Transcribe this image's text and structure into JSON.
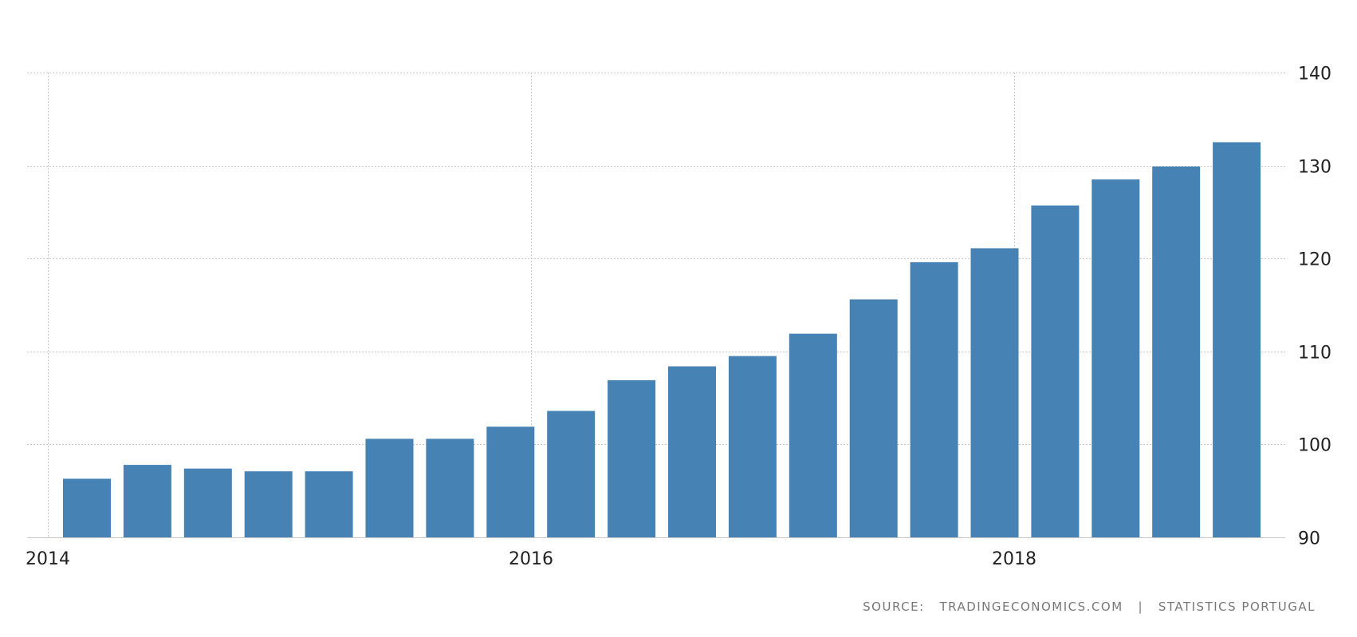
{
  "chart_data": {
    "type": "bar",
    "title": "",
    "xlabel": "",
    "ylabel": "",
    "x_tick_labels": [
      "2014",
      "2016",
      "2018"
    ],
    "y_ticks": [
      90,
      100,
      110,
      120,
      130,
      140
    ],
    "ylim": [
      90,
      140
    ],
    "grid": true,
    "bar_color": "#4682b4",
    "categories": [
      "2014-Q1",
      "2014-Q2",
      "2014-Q3",
      "2014-Q4",
      "2015-Q1",
      "2015-Q2",
      "2015-Q3",
      "2015-Q4",
      "2016-Q1",
      "2016-Q2",
      "2016-Q3",
      "2016-Q4",
      "2017-Q1",
      "2017-Q2",
      "2017-Q3",
      "2017-Q4",
      "2018-Q1",
      "2018-Q2",
      "2018-Q3",
      "2018-Q4"
    ],
    "values": [
      96.3,
      97.8,
      97.4,
      97.1,
      97.1,
      100.6,
      100.6,
      101.9,
      103.6,
      106.9,
      108.4,
      109.5,
      111.9,
      115.6,
      119.6,
      121.1,
      125.7,
      128.5,
      129.9,
      132.5
    ]
  },
  "source": {
    "prefix": "SOURCE:",
    "site": "TRADINGECONOMICS.COM",
    "separator": "|",
    "provider": "STATISTICS PORTUGAL"
  }
}
